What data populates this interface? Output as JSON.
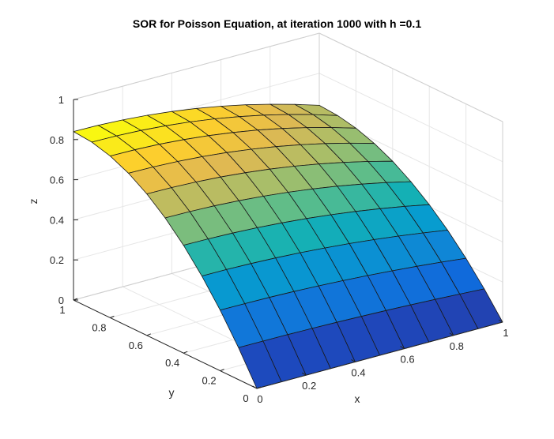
{
  "chart_data": {
    "type": "surface",
    "title": "SOR for Poisson Equation, at iteration 1000 with h =0.1",
    "xlabel": "x",
    "ylabel": "y",
    "zlabel": "z",
    "xlim": [
      0,
      1
    ],
    "ylim": [
      0,
      1
    ],
    "zlim": [
      0,
      1
    ],
    "x_ticks": [
      "0",
      "0.2",
      "0.4",
      "0.6",
      "0.8",
      "1"
    ],
    "y_ticks": [
      "0",
      "0.2",
      "0.4",
      "0.6",
      "0.8",
      "1"
    ],
    "z_ticks": [
      "0",
      "0.2",
      "0.4",
      "0.6",
      "0.8",
      "1"
    ],
    "grid": true,
    "colormap": "parula",
    "grid_step": 0.1,
    "x": [
      0,
      0.1,
      0.2,
      0.3,
      0.4,
      0.5,
      0.6,
      0.7,
      0.8,
      0.9,
      1
    ],
    "y": [
      0,
      0.1,
      0.2,
      0.3,
      0.4,
      0.5,
      0.6,
      0.7,
      0.8,
      0.9,
      1
    ],
    "z_description": "z rises from 0 at y=0 to about 0.84 at y=1 (x=0), decreasing to about 0.64 at y=1, x=1; concave in y"
  }
}
